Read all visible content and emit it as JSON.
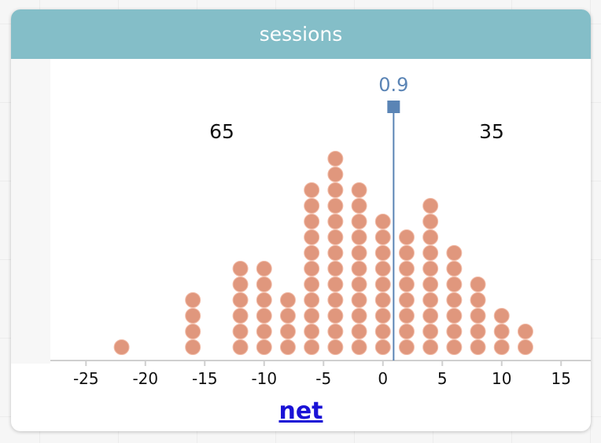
{
  "card": {
    "title": "sessions",
    "axis_title": "net"
  },
  "colors": {
    "header": "#84bec8",
    "dot": "#e0977d",
    "dot_edge": "#f2bca8",
    "divider": "#5a84b5",
    "axis": "#cfcfcf",
    "link": "#1a12d6"
  },
  "chart_data": {
    "type": "dotplot",
    "title": "sessions",
    "xlabel": "net",
    "xlim": [
      -28,
      17.5
    ],
    "ticks": [
      -25,
      -20,
      -15,
      -10,
      -5,
      0,
      5,
      10,
      15
    ],
    "tick_labels": [
      "-25",
      "-20",
      "-15",
      "-10",
      "-5",
      "0",
      "5",
      "10",
      "15"
    ],
    "columns": [
      {
        "x": -22,
        "count": 1
      },
      {
        "x": -16,
        "count": 4
      },
      {
        "x": -12,
        "count": 6
      },
      {
        "x": -10,
        "count": 6
      },
      {
        "x": -8,
        "count": 4
      },
      {
        "x": -6,
        "count": 11
      },
      {
        "x": -4,
        "count": 13
      },
      {
        "x": -2,
        "count": 11
      },
      {
        "x": 0,
        "count": 9
      },
      {
        "x": 2,
        "count": 8
      },
      {
        "x": 4,
        "count": 10
      },
      {
        "x": 6,
        "count": 7
      },
      {
        "x": 8,
        "count": 5
      },
      {
        "x": 10,
        "count": 3
      },
      {
        "x": 12,
        "count": 2
      }
    ],
    "divider": {
      "value": 0.9,
      "label": "0.9"
    },
    "counts": {
      "left": "65",
      "right": "35"
    }
  }
}
